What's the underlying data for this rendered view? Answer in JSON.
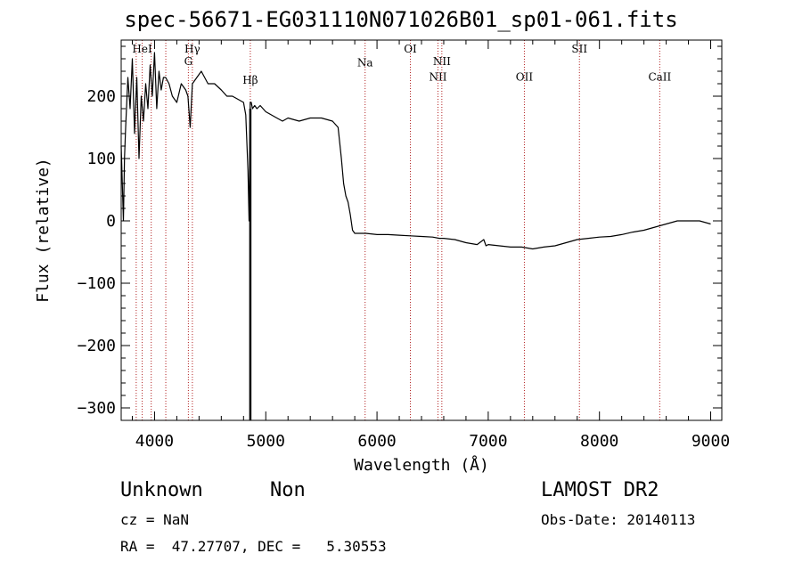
{
  "chart_data": {
    "type": "line",
    "title": "spec-56671-EG031110N071026B01_sp01-061.fits",
    "xlabel": "Wavelength (Å)",
    "ylabel": "Flux (relative)",
    "xlim": [
      3700,
      9100
    ],
    "ylim": [
      -320,
      290
    ],
    "xticks": [
      4000,
      5000,
      6000,
      7000,
      8000,
      9000
    ],
    "xtick_labels": [
      "4000",
      "5000",
      "6000",
      "7000",
      "8000",
      "9000"
    ],
    "yticks": [
      200,
      100,
      0,
      -100,
      -200,
      -300
    ],
    "ytick_labels": [
      "200",
      "100",
      "0",
      "−100",
      "−200",
      "−300"
    ],
    "series": [
      {
        "name": "spectrum",
        "x": [
          3700,
          3720,
          3730,
          3740,
          3760,
          3780,
          3800,
          3820,
          3840,
          3860,
          3880,
          3900,
          3920,
          3940,
          3960,
          3980,
          4000,
          4020,
          4040,
          4060,
          4080,
          4100,
          4130,
          4160,
          4200,
          4240,
          4280,
          4300,
          4320,
          4340,
          4380,
          4420,
          4480,
          4540,
          4600,
          4650,
          4700,
          4750,
          4800,
          4820,
          4840,
          4850,
          4860,
          4870,
          4880,
          4900,
          4920,
          4950,
          5000,
          5050,
          5100,
          5150,
          5200,
          5300,
          5400,
          5500,
          5600,
          5650,
          5680,
          5700,
          5720,
          5740,
          5760,
          5780,
          5800,
          5820,
          5850,
          5900,
          6000,
          6100,
          6200,
          6300,
          6400,
          6500,
          6560,
          6600,
          6700,
          6800,
          6900,
          6960,
          6980,
          7000,
          7100,
          7200,
          7300,
          7400,
          7500,
          7600,
          7700,
          7800,
          7900,
          8000,
          8100,
          8200,
          8300,
          8400,
          8500,
          8600,
          8700,
          8800,
          8900,
          9000
        ],
        "y": [
          120,
          0,
          100,
          150,
          230,
          180,
          260,
          140,
          230,
          100,
          200,
          160,
          220,
          180,
          250,
          200,
          270,
          180,
          240,
          210,
          230,
          230,
          220,
          200,
          190,
          220,
          210,
          200,
          150,
          220,
          230,
          240,
          220,
          220,
          210,
          200,
          200,
          195,
          190,
          170,
          80,
          0,
          190,
          190,
          180,
          185,
          180,
          185,
          175,
          170,
          165,
          160,
          165,
          160,
          165,
          165,
          160,
          150,
          100,
          60,
          40,
          30,
          10,
          -15,
          -20,
          -20,
          -20,
          -20,
          -22,
          -22,
          -23,
          -24,
          -25,
          -26,
          -28,
          -28,
          -30,
          -35,
          -38,
          -30,
          -40,
          -38,
          -40,
          -42,
          -42,
          -45,
          -42,
          -40,
          -35,
          -30,
          -28,
          -26,
          -25,
          -22,
          -18,
          -15,
          -10,
          -5,
          0,
          0,
          0,
          -5
        ]
      }
    ],
    "spike": {
      "x": 4861,
      "y_min": -320
    },
    "emission_lines": [
      {
        "label": "HeI",
        "x": 3889,
        "label_y": 270
      },
      {
        "label": "Hγ",
        "x": 4340,
        "label_y": 270
      },
      {
        "label": "G",
        "x": 4304,
        "label_y": 250
      },
      {
        "label": "Hβ",
        "x": 4861,
        "label_y": 220
      },
      {
        "label": "Na",
        "x": 5893,
        "label_y": 248
      },
      {
        "label": "OI",
        "x": 6300,
        "label_y": 270
      },
      {
        "label": "NII",
        "x": 6548,
        "label_y": 225
      },
      {
        "label": "NII",
        "x": 6583,
        "label_y": 250
      },
      {
        "label": "OII",
        "x": 7325,
        "label_y": 225
      },
      {
        "label": "SII",
        "x": 7820,
        "label_y": 270
      },
      {
        "label": "CaII",
        "x": 8542,
        "label_y": 225
      }
    ],
    "extra_lines_x": [
      3835,
      3970,
      4101
    ]
  },
  "footer": {
    "class": "Unknown",
    "subclass": "Non",
    "survey": "LAMOST DR2",
    "cz": "cz = NaN",
    "obs_date": "Obs-Date: 20140113",
    "coords": "RA =  47.27707, DEC =   5.30553"
  }
}
